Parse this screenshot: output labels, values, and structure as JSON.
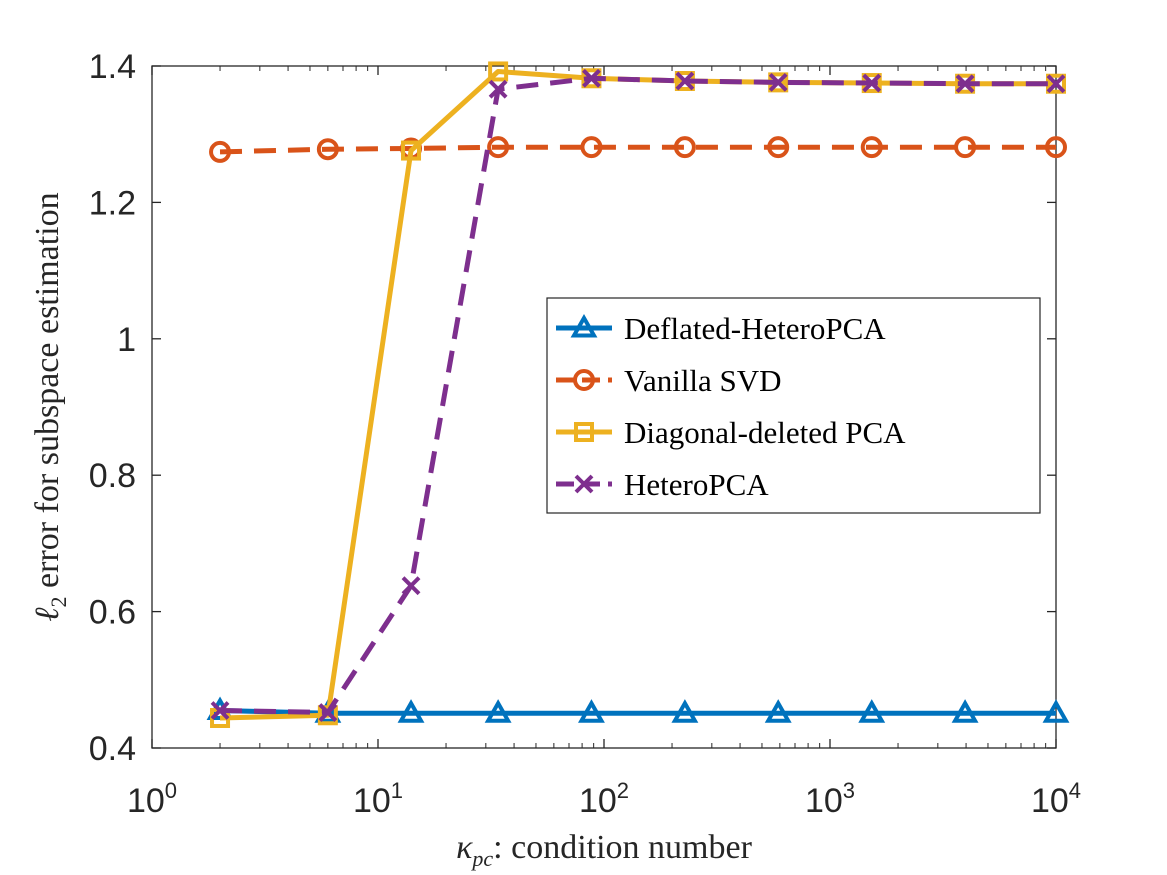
{
  "chart_data": {
    "type": "line",
    "xscale": "log",
    "xlim": [
      1,
      10000
    ],
    "ylim": [
      0.4,
      1.4
    ],
    "x_ticks": [
      {
        "base": "10",
        "exp": "0"
      },
      {
        "base": "10",
        "exp": "1"
      },
      {
        "base": "10",
        "exp": "2"
      },
      {
        "base": "10",
        "exp": "3"
      },
      {
        "base": "10",
        "exp": "4"
      }
    ],
    "y_ticks": [
      "0.4",
      "0.6",
      "0.8",
      "1",
      "1.2",
      "1.4"
    ],
    "y_tick_values": [
      0.4,
      0.6,
      0.8,
      1.0,
      1.2,
      1.4
    ],
    "xlabel": {
      "symbol": "κ",
      "subscript": "pc",
      "rest": ": condition number"
    },
    "ylabel": {
      "symbol": "ℓ",
      "subscript": "2",
      "rest": " error for subspace estimation"
    },
    "x": [
      2,
      6,
      14,
      34,
      88,
      228,
      590,
      1530,
      3960,
      10000
    ],
    "series": [
      {
        "name": "Deflated-HeteroPCA",
        "color": "#0072BD",
        "dash": "solid",
        "marker": "triangle",
        "values": [
          0.455,
          0.451,
          0.451,
          0.451,
          0.451,
          0.451,
          0.451,
          0.451,
          0.451,
          0.451
        ]
      },
      {
        "name": "Vanilla SVD",
        "color": "#D95319",
        "dash": "dashed",
        "marker": "circle",
        "values": [
          1.274,
          1.278,
          1.279,
          1.281,
          1.281,
          1.281,
          1.281,
          1.281,
          1.281,
          1.281
        ]
      },
      {
        "name": "Diagonal-deleted PCA",
        "color": "#EDB120",
        "dash": "solid",
        "marker": "square",
        "values": [
          0.444,
          0.448,
          1.276,
          1.392,
          1.382,
          1.378,
          1.376,
          1.375,
          1.374,
          1.374
        ]
      },
      {
        "name": "HeteroPCA",
        "color": "#7E2F8E",
        "dash": "dashed",
        "marker": "x",
        "values": [
          0.455,
          0.452,
          0.638,
          1.366,
          1.382,
          1.378,
          1.376,
          1.375,
          1.374,
          1.374
        ]
      }
    ],
    "legend_position": "center-right"
  }
}
